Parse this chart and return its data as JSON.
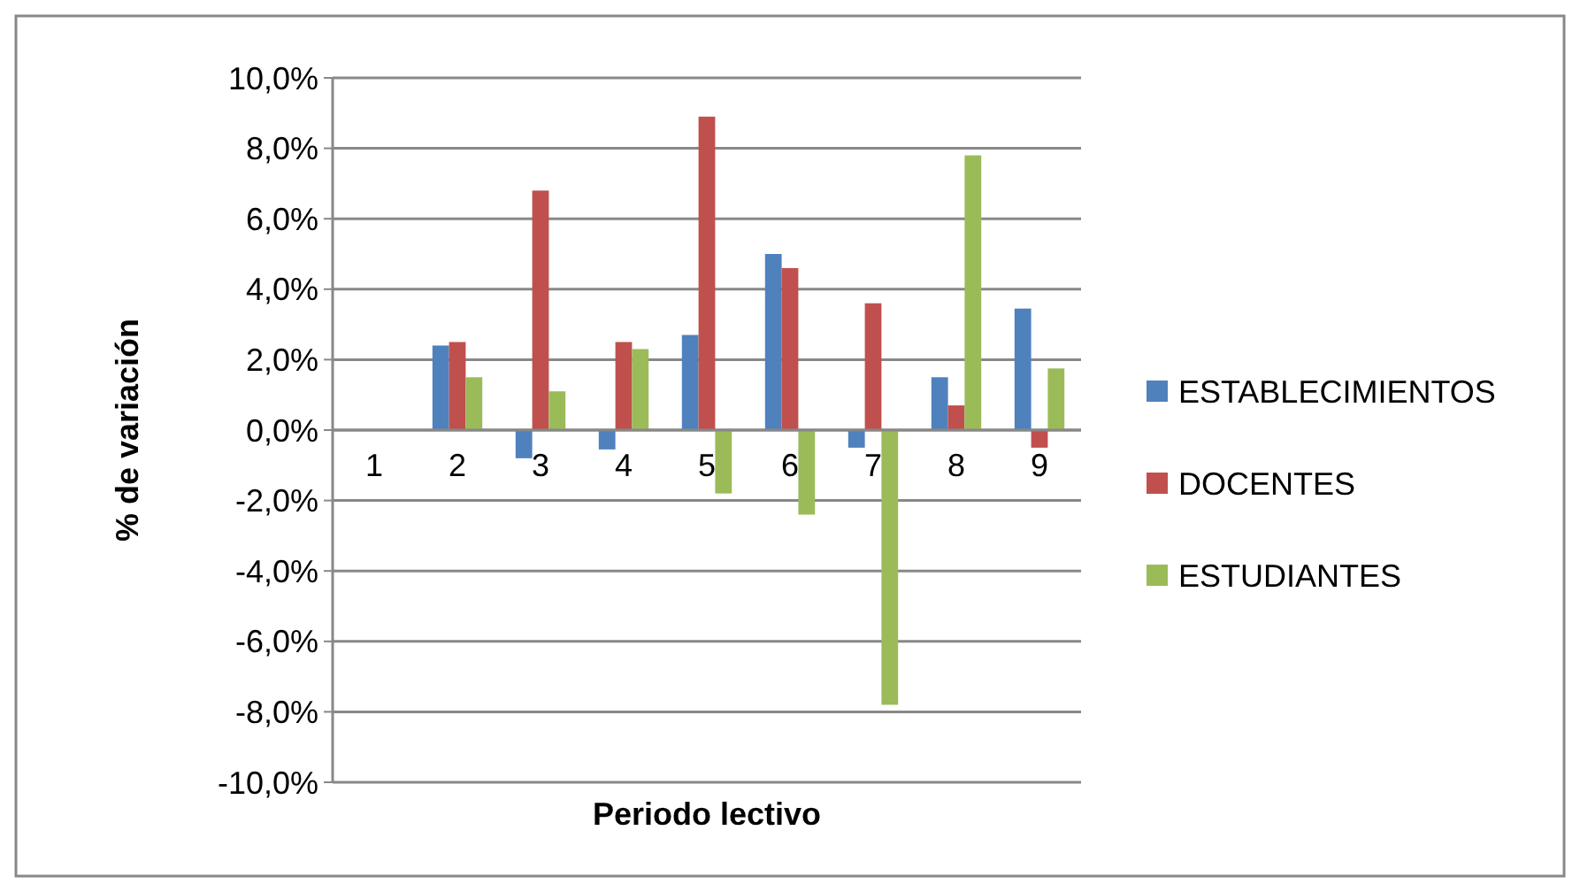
{
  "chart_data": {
    "type": "bar",
    "xlabel": "Periodo lectivo",
    "ylabel": "% de variación",
    "categories": [
      "1",
      "2",
      "3",
      "4",
      "5",
      "6",
      "7",
      "8",
      "9"
    ],
    "series": [
      {
        "name": "ESTABLECIMIENTOS",
        "color": "#4f81bd",
        "values": [
          null,
          2.4,
          -0.8,
          -0.55,
          2.7,
          5.0,
          -0.5,
          1.5,
          3.45
        ]
      },
      {
        "name": "DOCENTES",
        "color": "#c0504d",
        "values": [
          null,
          2.5,
          6.8,
          2.5,
          8.9,
          4.6,
          3.6,
          0.7,
          -0.5
        ]
      },
      {
        "name": "ESTUDIANTES",
        "color": "#9bbb59",
        "values": [
          null,
          1.5,
          1.1,
          2.3,
          -1.8,
          -2.4,
          -7.8,
          7.8,
          1.75
        ]
      }
    ],
    "ylim": [
      -10,
      10
    ],
    "yticks": [
      {
        "value": -10,
        "label": "-10,0%"
      },
      {
        "value": -8,
        "label": "-8,0%"
      },
      {
        "value": -6,
        "label": "-6,0%"
      },
      {
        "value": -4,
        "label": "-4,0%"
      },
      {
        "value": -2,
        "label": "-2,0%"
      },
      {
        "value": 0,
        "label": "0,0%"
      },
      {
        "value": 2,
        "label": "2,0%"
      },
      {
        "value": 4,
        "label": "4,0%"
      },
      {
        "value": 6,
        "label": "6,0%"
      },
      {
        "value": 8,
        "label": "8,0%"
      },
      {
        "value": 10,
        "label": "10,0%"
      }
    ],
    "grid": "y",
    "legend": "right"
  }
}
